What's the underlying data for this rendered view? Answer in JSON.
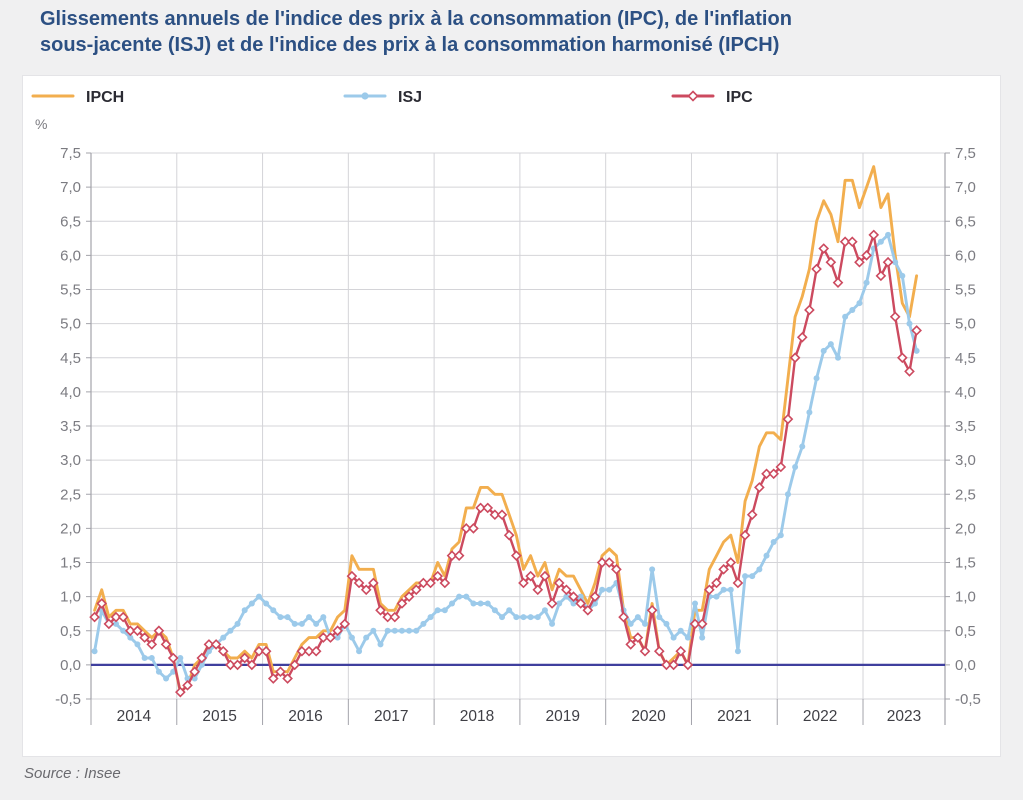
{
  "page": {
    "title_line1": "Glissements annuels de l'indice des prix à la consommation (IPC), de l'inflation",
    "title_line2": "sous-jacente (ISJ) et de l'indice des prix à la consommation harmonisé (IPCH)",
    "source": "Source : Insee"
  },
  "chart_data": {
    "type": "line",
    "title": "Glissements annuels de l'indice des prix à la consommation (IPC), de l'inflation sous-jacente (ISJ) et de l'indice des prix à la consommation harmonisé (IPCH)",
    "unit_label": "%",
    "ylim": [
      -0.5,
      7.5
    ],
    "ytick_step": 0.5,
    "grid": true,
    "legend_position": "top",
    "x_years": [
      "2014",
      "2015",
      "2016",
      "2017",
      "2018",
      "2019",
      "2020",
      "2021",
      "2022",
      "2023"
    ],
    "months_per_full_year": 12,
    "final_year_months": 8,
    "frequency": "monthly",
    "zero_line_color": "#3F3F9E",
    "grid_color": "#D4D4D8",
    "axis_color": "#A3A3AA",
    "series": [
      {
        "name": "IPCH",
        "color": "#F2AE4E",
        "marker": "none",
        "values": [
          0.8,
          1.1,
          0.7,
          0.8,
          0.8,
          0.6,
          0.6,
          0.5,
          0.4,
          0.5,
          0.4,
          0.1,
          -0.4,
          -0.3,
          0.0,
          0.1,
          0.3,
          0.3,
          0.2,
          0.1,
          0.1,
          0.2,
          0.1,
          0.3,
          0.3,
          -0.1,
          -0.1,
          -0.1,
          0.1,
          0.3,
          0.4,
          0.4,
          0.5,
          0.5,
          0.7,
          0.8,
          1.6,
          1.4,
          1.4,
          1.4,
          0.9,
          0.8,
          0.8,
          1.0,
          1.1,
          1.2,
          1.2,
          1.2,
          1.5,
          1.3,
          1.7,
          1.8,
          2.3,
          2.3,
          2.6,
          2.6,
          2.5,
          2.5,
          2.2,
          1.9,
          1.4,
          1.6,
          1.3,
          1.5,
          1.1,
          1.4,
          1.3,
          1.3,
          1.1,
          0.9,
          1.2,
          1.6,
          1.7,
          1.6,
          0.8,
          0.4,
          0.4,
          0.2,
          0.9,
          0.2,
          0.0,
          0.1,
          0.2,
          0.0,
          0.8,
          0.8,
          1.4,
          1.6,
          1.8,
          1.9,
          1.5,
          2.4,
          2.7,
          3.2,
          3.4,
          3.4,
          3.3,
          4.2,
          5.1,
          5.4,
          5.8,
          6.5,
          6.8,
          6.6,
          6.2,
          7.1,
          7.1,
          6.7,
          7.0,
          7.3,
          6.7,
          6.9,
          6.0,
          5.3,
          5.1,
          5.7
        ]
      },
      {
        "name": "ISJ",
        "color": "#9CCAEA",
        "marker": "circle",
        "values": [
          0.2,
          0.8,
          0.6,
          0.6,
          0.5,
          0.4,
          0.3,
          0.1,
          0.1,
          -0.1,
          -0.2,
          -0.1,
          0.1,
          -0.2,
          -0.2,
          0.0,
          0.2,
          0.3,
          0.4,
          0.5,
          0.6,
          0.8,
          0.9,
          1.0,
          0.9,
          0.8,
          0.7,
          0.7,
          0.6,
          0.6,
          0.7,
          0.6,
          0.7,
          0.4,
          0.4,
          0.6,
          0.4,
          0.2,
          0.4,
          0.5,
          0.3,
          0.5,
          0.5,
          0.5,
          0.5,
          0.5,
          0.6,
          0.7,
          0.8,
          0.8,
          0.9,
          1.0,
          1.0,
          0.9,
          0.9,
          0.9,
          0.8,
          0.7,
          0.8,
          0.7,
          0.7,
          0.7,
          0.7,
          0.8,
          0.6,
          0.9,
          1.0,
          0.9,
          1.0,
          0.8,
          0.9,
          1.1,
          1.1,
          1.2,
          0.8,
          0.6,
          0.7,
          0.6,
          1.4,
          0.7,
          0.6,
          0.4,
          0.5,
          0.4,
          0.9,
          0.4,
          1.0,
          1.0,
          1.1,
          1.1,
          0.2,
          1.3,
          1.3,
          1.4,
          1.6,
          1.8,
          1.9,
          2.5,
          2.9,
          3.2,
          3.7,
          4.2,
          4.6,
          4.7,
          4.5,
          5.1,
          5.2,
          5.3,
          5.6,
          6.1,
          6.2,
          6.3,
          5.9,
          5.7,
          5.0,
          4.6
        ]
      },
      {
        "name": "IPC",
        "color": "#CC4A5F",
        "marker": "diamond",
        "values": [
          0.7,
          0.9,
          0.6,
          0.7,
          0.7,
          0.5,
          0.5,
          0.4,
          0.3,
          0.5,
          0.3,
          0.1,
          -0.4,
          -0.3,
          -0.1,
          0.1,
          0.3,
          0.3,
          0.2,
          0.0,
          0.0,
          0.1,
          0.0,
          0.2,
          0.2,
          -0.2,
          -0.1,
          -0.2,
          0.0,
          0.2,
          0.2,
          0.2,
          0.4,
          0.4,
          0.5,
          0.6,
          1.3,
          1.2,
          1.1,
          1.2,
          0.8,
          0.7,
          0.7,
          0.9,
          1.0,
          1.1,
          1.2,
          1.2,
          1.3,
          1.2,
          1.6,
          1.6,
          2.0,
          2.0,
          2.3,
          2.3,
          2.2,
          2.2,
          1.9,
          1.6,
          1.2,
          1.3,
          1.1,
          1.3,
          0.9,
          1.2,
          1.1,
          1.0,
          0.9,
          0.8,
          1.0,
          1.5,
          1.5,
          1.4,
          0.7,
          0.3,
          0.4,
          0.2,
          0.8,
          0.2,
          0.0,
          0.0,
          0.2,
          0.0,
          0.6,
          0.6,
          1.1,
          1.2,
          1.4,
          1.5,
          1.2,
          1.9,
          2.2,
          2.6,
          2.8,
          2.8,
          2.9,
          3.6,
          4.5,
          4.8,
          5.2,
          5.8,
          6.1,
          5.9,
          5.6,
          6.2,
          6.2,
          5.9,
          6.0,
          6.3,
          5.7,
          5.9,
          5.1,
          4.5,
          4.3,
          4.9
        ]
      }
    ]
  }
}
